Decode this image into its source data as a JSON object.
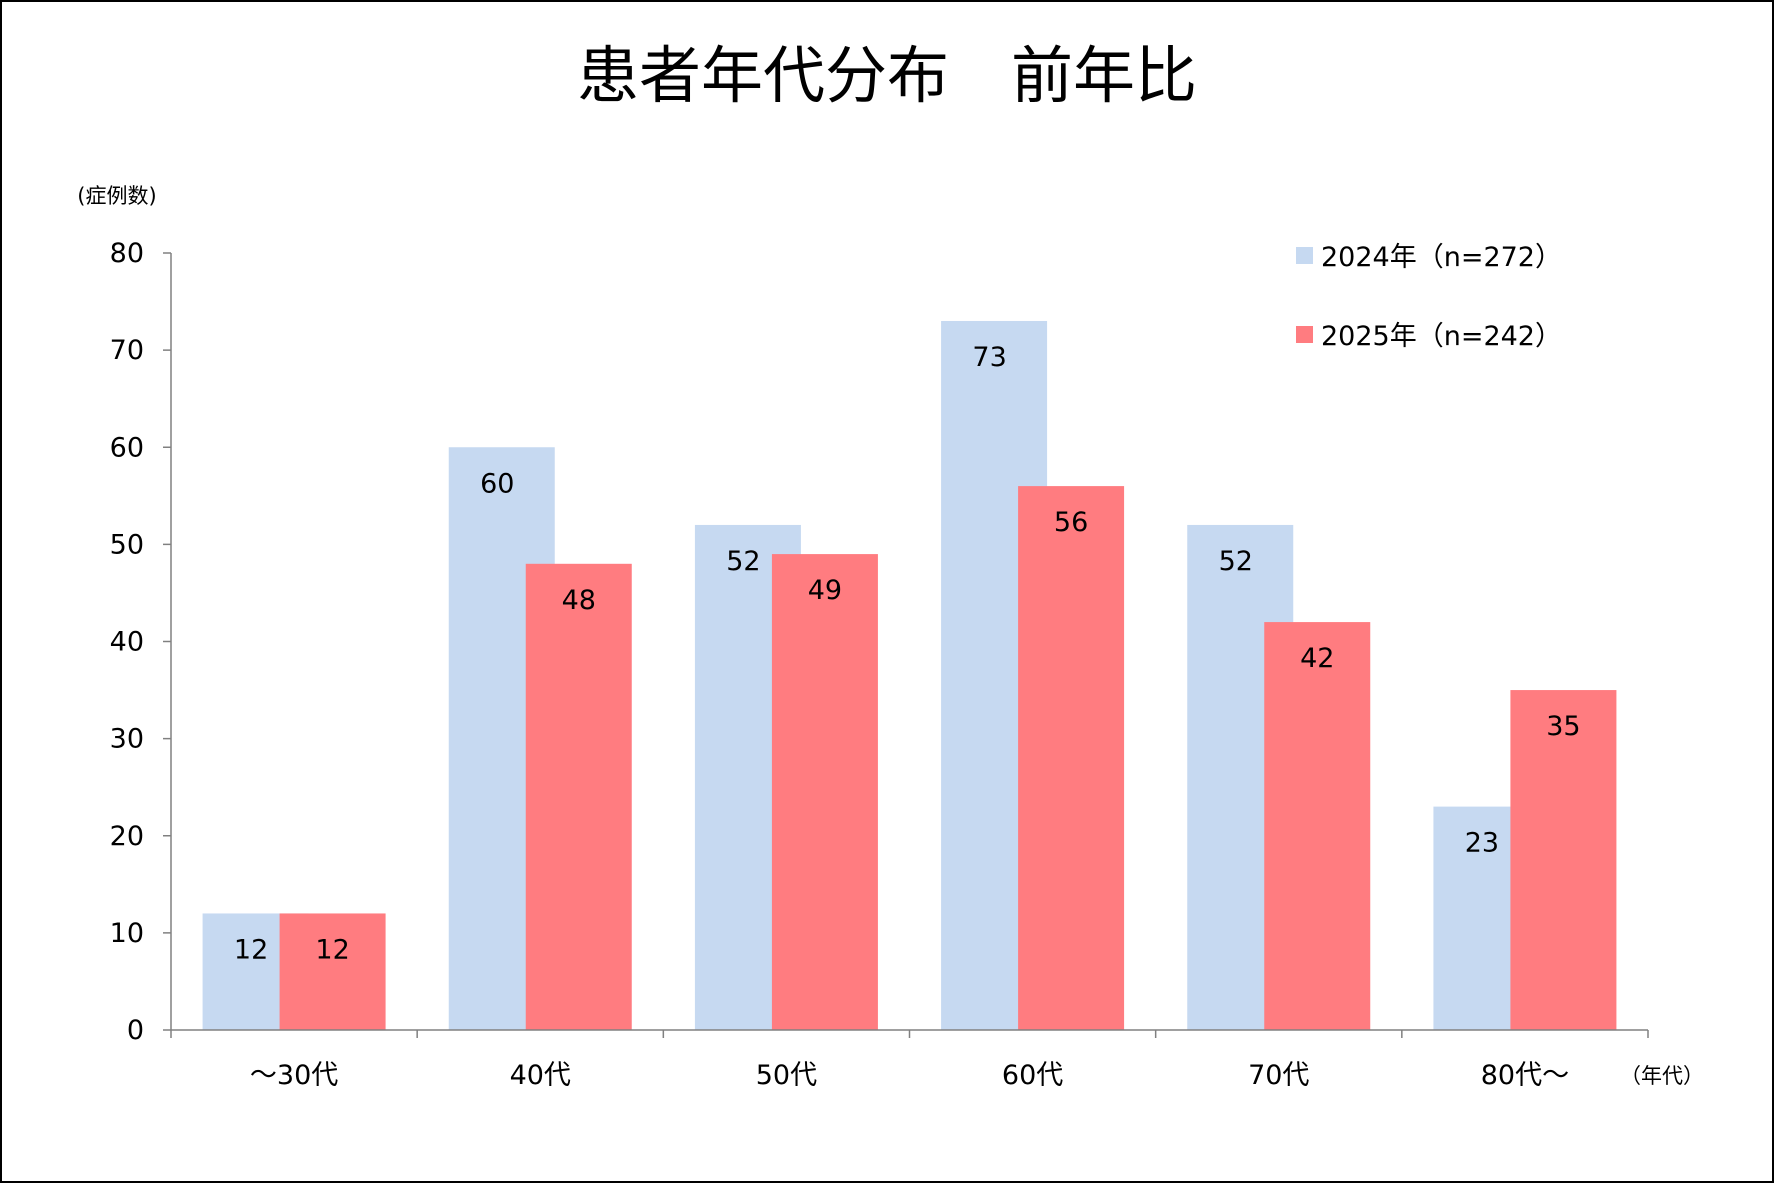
{
  "chart_data": {
    "type": "bar",
    "title": "患者年代分布　前年比",
    "ylabel": "(症例数)",
    "xlabel": "（年代）",
    "categories": [
      "～30代",
      "40代",
      "50代",
      "60代",
      "70代",
      "80代～"
    ],
    "ylim": [
      0,
      80
    ],
    "yticks": [
      0,
      10,
      20,
      30,
      40,
      50,
      60,
      70,
      80
    ],
    "series": [
      {
        "name": "2024年（n=272）",
        "values": [
          12,
          60,
          52,
          73,
          52,
          23
        ],
        "color": "#c6d9f1"
      },
      {
        "name": "2025年（n=242）",
        "values": [
          12,
          48,
          49,
          56,
          42,
          35
        ],
        "color": "#ff7c80"
      }
    ],
    "grid": false,
    "legend": "top-right",
    "data_labels": true
  }
}
